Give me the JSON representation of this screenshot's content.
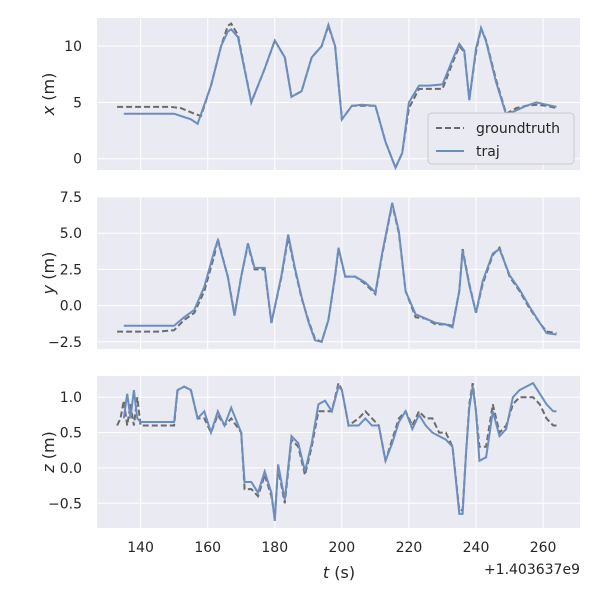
{
  "chart_data": {
    "type": "line",
    "layout": "3 vertically stacked subplots sharing the x axis",
    "x_offset_label": "+1.403637e9",
    "xlabel": "t (s)",
    "xlim": [
      127,
      271
    ],
    "xticks": [
      140,
      160,
      180,
      200,
      220,
      240,
      260
    ],
    "xtick_labels": [
      "140",
      "160",
      "180",
      "200",
      "220",
      "240",
      "260"
    ],
    "grid": true,
    "legend": {
      "location": "lower-right of top panel",
      "entries": [
        {
          "label": "groundtruth",
          "series": "groundtruth",
          "style": "dashed",
          "color": "#6b6b6b"
        },
        {
          "label": "traj",
          "series": "traj",
          "style": "solid",
          "color": "#6c8ebf"
        }
      ]
    },
    "subplots": [
      {
        "id": "x",
        "ylabel_var": "x",
        "ylabel_unit": " (m)",
        "ylim": [
          -1,
          12.5
        ],
        "yticks": [
          0,
          5,
          10
        ],
        "ytick_labels": [
          "0",
          "5",
          "10"
        ],
        "series": [
          {
            "name": "groundtruth",
            "x": [
              133,
              145,
              149,
              152,
              156,
              158,
              161,
              164,
              166,
              167,
              169,
              173,
              177,
              180,
              183,
              185,
              188,
              191,
              194,
              196,
              198,
              200,
              203,
              206,
              210,
              213,
              216,
              218,
              220,
              223,
              226,
              230,
              233,
              235,
              236.5,
              238,
              240,
              241.5,
              243,
              246,
              249,
              252,
              255,
              258,
              261,
              264
            ],
            "y": [
              4.6,
              4.6,
              4.6,
              4.5,
              4,
              3.8,
              6.5,
              10,
              11.8,
              12,
              11,
              5,
              8,
              10.5,
              9,
              5.5,
              6,
              9,
              10,
              11.8,
              10,
              3.5,
              4.7,
              4.7,
              4.7,
              1.5,
              -0.8,
              0.5,
              4.5,
              6.2,
              6.2,
              6.2,
              8.5,
              10,
              9.5,
              5.3,
              9.5,
              11.6,
              10.5,
              7,
              4,
              4.5,
              4.7,
              4.8,
              4.7,
              4.5
            ]
          },
          {
            "name": "traj",
            "x": [
              135,
              145,
              150,
              152,
              155,
              157,
              161,
              164,
              166,
              167,
              169,
              173,
              177,
              180,
              183,
              185,
              188,
              191,
              194,
              196,
              198,
              200,
              203,
              206,
              210,
              213,
              216,
              218,
              220,
              223,
              226,
              230,
              233,
              235,
              236.5,
              238,
              240,
              241.5,
              243,
              246,
              249,
              252,
              255,
              258,
              261,
              264
            ],
            "y": [
              4,
              4,
              4,
              3.8,
              3.5,
              3.1,
              6.5,
              10,
              11.3,
              11.5,
              10.8,
              5,
              8,
              10.5,
              9,
              5.5,
              6,
              9,
              10,
              11.9,
              10,
              3.5,
              4.7,
              4.8,
              4.7,
              1.5,
              -0.8,
              0.5,
              5,
              6.5,
              6.5,
              6.6,
              8.8,
              10.2,
              9.6,
              5.2,
              9.8,
              11.6,
              10.4,
              6.8,
              3.9,
              4.3,
              4.7,
              5,
              4.8,
              4.6
            ]
          }
        ]
      },
      {
        "id": "y",
        "ylabel_var": "y",
        "ylabel_unit": " (m)",
        "ylim": [
          -3,
          7.5
        ],
        "yticks": [
          -2.5,
          0.0,
          2.5,
          5.0,
          7.5
        ],
        "ytick_labels": [
          "−2.5",
          "0.0",
          "2.5",
          "5.0",
          "7.5"
        ],
        "series": [
          {
            "name": "groundtruth",
            "x": [
              133,
              145,
              150,
              153,
              156,
              159,
              162,
              163,
              166,
              168,
              170,
              172,
              174,
              177,
              179,
              182,
              184,
              186,
              188,
              190,
              192,
              194,
              196,
              198,
              199,
              201,
              204,
              207,
              210,
              212,
              215,
              217,
              219,
              222,
              225,
              228,
              231,
              233,
              235,
              236,
              238,
              240,
              242,
              245,
              247,
              250,
              253,
              256,
              259,
              261,
              264
            ],
            "y": [
              -1.8,
              -1.8,
              -1.7,
              -1,
              -0.5,
              1,
              3.5,
              4.6,
              2,
              -0.6,
              2,
              4.2,
              2.5,
              2.5,
              -1.2,
              2,
              4.7,
              2.5,
              0.5,
              -1,
              -2.3,
              -2.5,
              -1,
              2,
              3.9,
              2,
              2,
              1.5,
              0.8,
              3.5,
              7,
              5,
              1,
              -0.8,
              -0.9,
              -1.3,
              -1.3,
              -1.4,
              1,
              3.9,
              1.5,
              -0.5,
              1.5,
              3.5,
              4,
              2,
              1,
              -0.2,
              -1.2,
              -1.8,
              -1.9
            ]
          },
          {
            "name": "traj",
            "x": [
              135,
              145,
              150,
              153,
              156,
              159,
              162,
              163,
              166,
              168,
              170,
              172,
              174,
              177,
              179,
              182,
              184,
              186,
              188,
              190,
              192,
              194,
              196,
              198,
              199,
              201,
              204,
              207,
              210,
              212,
              215,
              217,
              219,
              222,
              225,
              228,
              231,
              233,
              235,
              236,
              238,
              240,
              242,
              245,
              247,
              250,
              253,
              256,
              259,
              261,
              264
            ],
            "y": [
              -1.4,
              -1.4,
              -1.4,
              -0.8,
              -0.3,
              1.3,
              3.8,
              4.5,
              2,
              -0.7,
              2,
              4.3,
              2.6,
              2.6,
              -1.2,
              2.1,
              4.9,
              2.6,
              0.6,
              -1.1,
              -2.4,
              -2.5,
              -1,
              2.1,
              4,
              2,
              2,
              1.6,
              0.9,
              3.6,
              7.1,
              5.1,
              1,
              -0.6,
              -0.9,
              -1.2,
              -1.3,
              -1.5,
              1,
              3.8,
              1.4,
              -0.5,
              1.7,
              3.6,
              3.9,
              2.1,
              1.1,
              -0.1,
              -1.2,
              -1.9,
              -2
            ]
          }
        ]
      },
      {
        "id": "z",
        "ylabel_var": "z",
        "ylabel_unit": " (m)",
        "ylim": [
          -0.85,
          1.3
        ],
        "yticks": [
          -0.5,
          0.0,
          0.5,
          1.0
        ],
        "ytick_labels": [
          "−0.5",
          "0.0",
          "0.5",
          "1.0"
        ],
        "series": [
          {
            "name": "groundtruth",
            "x": [
              133,
              134,
              135,
              136,
              137,
              138,
              139,
              140,
              141,
              145,
              150,
              151,
              153,
              155,
              157,
              159,
              161,
              163,
              165,
              167,
              170,
              171,
              173,
              175,
              177,
              179,
              180,
              181,
              183,
              185,
              187,
              189,
              191,
              193,
              195,
              197,
              199,
              200,
              202,
              205,
              207,
              209,
              211,
              213,
              215,
              217,
              219,
              221,
              223,
              225,
              227,
              229,
              231,
              233,
              235,
              236,
              237,
              238,
              239,
              240,
              241,
              243,
              245,
              247,
              249,
              251,
              253,
              255,
              257,
              259,
              261,
              263,
              264
            ],
            "y": [
              0.6,
              0.7,
              0.95,
              0.6,
              0.9,
              0.6,
              1.0,
              0.6,
              0.6,
              0.6,
              0.6,
              1.1,
              1.15,
              1.1,
              0.7,
              0.7,
              0.5,
              0.75,
              0.6,
              0.7,
              0.5,
              -0.3,
              -0.3,
              -0.4,
              -0.1,
              -0.4,
              -0.7,
              0.0,
              -0.5,
              0.4,
              0.3,
              -0.1,
              0.3,
              0.8,
              0.8,
              0.8,
              1.2,
              1.1,
              0.6,
              0.7,
              0.8,
              0.7,
              0.6,
              0.1,
              0.4,
              0.7,
              0.8,
              0.6,
              0.8,
              0.7,
              0.7,
              0.5,
              0.5,
              0.3,
              -0.6,
              -0.6,
              0.2,
              0.9,
              1.2,
              0.8,
              0.3,
              0.3,
              0.9,
              0.5,
              0.6,
              0.9,
              1.0,
              1.0,
              1.0,
              0.9,
              0.7,
              0.6,
              0.6
            ]
          },
          {
            "name": "traj",
            "x": [
              135,
              136,
              137,
              138,
              139,
              140,
              141,
              145,
              150,
              151,
              153,
              155,
              157,
              159,
              161,
              163,
              165,
              167,
              170,
              171,
              173,
              175,
              177,
              179,
              180,
              181,
              183,
              185,
              187,
              189,
              191,
              193,
              195,
              197,
              199,
              200,
              202,
              205,
              207,
              209,
              211,
              213,
              215,
              217,
              219,
              221,
              223,
              225,
              227,
              229,
              231,
              233,
              235,
              236,
              237,
              238,
              239,
              240,
              241,
              243,
              245,
              247,
              249,
              251,
              253,
              255,
              257,
              259,
              261,
              263,
              264
            ],
            "y": [
              0.7,
              1.05,
              0.7,
              1.1,
              0.7,
              0.65,
              0.65,
              0.65,
              0.65,
              1.1,
              1.15,
              1.1,
              0.7,
              0.8,
              0.5,
              0.8,
              0.6,
              0.85,
              0.5,
              -0.2,
              -0.2,
              -0.35,
              -0.05,
              -0.35,
              -0.75,
              0.05,
              -0.45,
              0.45,
              0.35,
              -0.05,
              0.35,
              0.9,
              0.95,
              0.8,
              1.15,
              1.1,
              0.6,
              0.6,
              0.7,
              0.6,
              0.6,
              0.1,
              0.35,
              0.65,
              0.8,
              0.55,
              0.75,
              0.6,
              0.5,
              0.45,
              0.4,
              0.3,
              -0.65,
              -0.65,
              0.2,
              0.85,
              1.15,
              0.8,
              0.1,
              0.15,
              0.8,
              0.45,
              0.55,
              1.0,
              1.1,
              1.15,
              1.2,
              1.05,
              0.9,
              0.8,
              0.8
            ]
          }
        ]
      }
    ]
  }
}
